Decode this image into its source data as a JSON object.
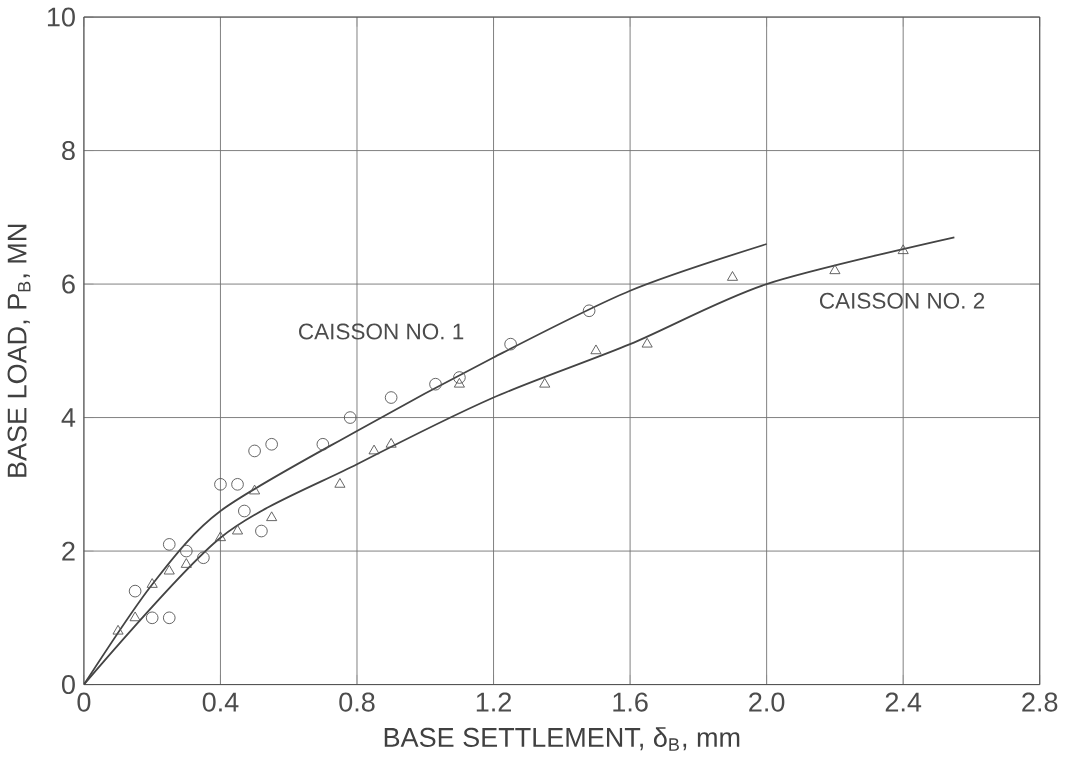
{
  "chart_data": {
    "type": "scatter",
    "xlabel": "BASE SETTLEMENT, δ$_{B}$, mm",
    "ylabel": "BASE LOAD, P$_{B}$, MN",
    "xlim": [
      0,
      2.8
    ],
    "ylim": [
      0,
      10
    ],
    "xticks": [
      0,
      0.4,
      0.8,
      1.2,
      1.6,
      {
        "value": 2,
        "label": "2.0"
      },
      2.4,
      2.8
    ],
    "yticks": [
      0,
      2,
      4,
      6,
      8,
      10
    ],
    "grid": true,
    "series": [
      {
        "type": "line",
        "name": "CAISSON NO. 1",
        "color": "#444444",
        "marker": "none",
        "x": [
          0,
          0.2,
          0.4,
          0.8,
          1.2,
          1.6,
          2.0
        ],
        "values": [
          0,
          1.5,
          2.6,
          3.8,
          4.9,
          5.9,
          6.6
        ]
      },
      {
        "type": "line",
        "name": "CAISSON NO. 2",
        "color": "#444444",
        "marker": "none",
        "x": [
          0,
          0.4,
          0.8,
          1.2,
          1.6,
          2.0,
          2.55
        ],
        "values": [
          0,
          2.2,
          3.3,
          4.3,
          5.1,
          6.0,
          6.7
        ]
      },
      {
        "color": "#555555",
        "marker": "circle",
        "x": [
          0.15,
          0.2,
          0.25,
          0.25,
          0.3,
          0.35,
          0.4,
          0.45,
          0.47,
          0.5,
          0.52,
          0.55,
          0.7,
          0.78,
          0.9,
          1.03,
          1.1,
          1.25,
          1.48
        ],
        "values": [
          1.4,
          1.0,
          1.0,
          2.1,
          2.0,
          1.9,
          3.0,
          3.0,
          2.6,
          3.5,
          2.3,
          3.6,
          3.6,
          4.0,
          4.3,
          4.5,
          4.6,
          5.1,
          5.6
        ]
      },
      {
        "color": "#555555",
        "marker": "triangle",
        "x": [
          0.1,
          0.15,
          0.2,
          0.25,
          0.3,
          0.4,
          0.45,
          0.5,
          0.55,
          0.75,
          0.85,
          0.9,
          1.1,
          1.35,
          1.5,
          1.65,
          1.9,
          2.2,
          2.4
        ],
        "values": [
          0.8,
          1.0,
          1.5,
          1.7,
          1.8,
          2.2,
          2.3,
          2.9,
          2.5,
          3.0,
          3.5,
          3.6,
          4.5,
          4.5,
          5.0,
          5.1,
          6.1,
          6.2,
          6.5
        ]
      }
    ]
  }
}
